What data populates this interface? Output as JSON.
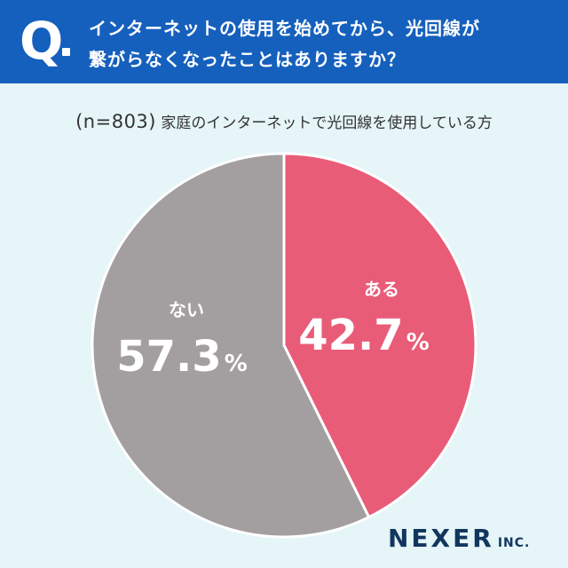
{
  "header": {
    "q_label": "Q",
    "question_line1": "インターネットの使用を始めてから、光回線が",
    "question_line2": "繋がらなくなったことはありますか？"
  },
  "subtitle": {
    "sample": "(n=803)",
    "text": "家庭のインターネットで光回線を使用している方"
  },
  "chart_data": {
    "type": "pie",
    "slices": [
      {
        "label": "ある",
        "value": 42.7,
        "display": "42.7",
        "color": "#e95c78"
      },
      {
        "label": "ない",
        "value": 57.3,
        "display": "57.3",
        "color": "#a39fa0"
      }
    ],
    "unit": "%",
    "start": "12 o'clock, clockwise"
  },
  "logo": {
    "main": "NEXER",
    "suffix": "INC."
  }
}
